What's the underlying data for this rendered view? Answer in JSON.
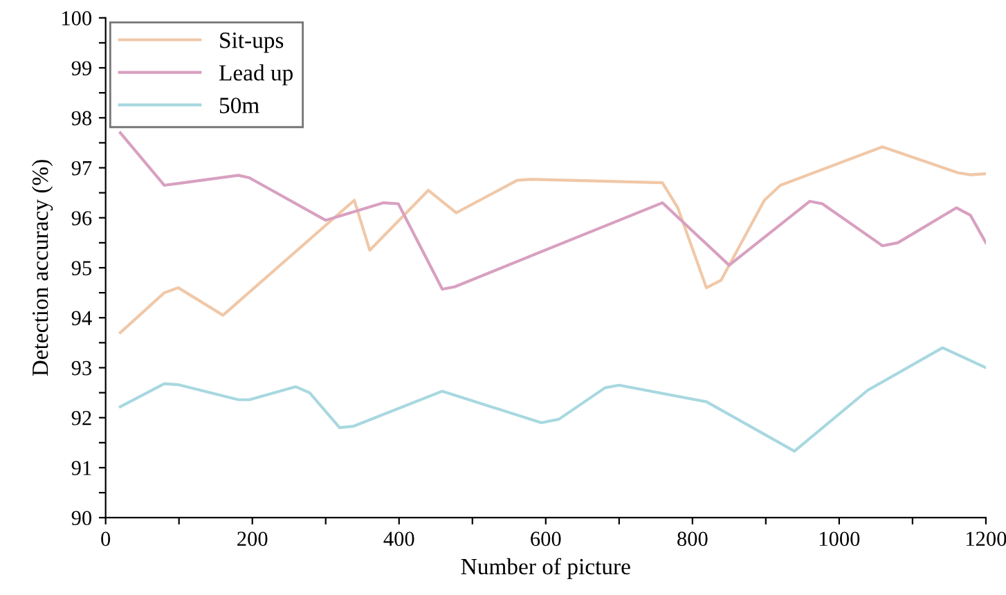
{
  "chart_data": {
    "type": "line",
    "xlabel": "Number of picture",
    "ylabel": "Detection accuracy (%)",
    "xlim": [
      0,
      1200
    ],
    "ylim": [
      90,
      100
    ],
    "xticks": [
      0,
      {
        "value": 100,
        "label": null
      },
      200,
      {
        "value": 300,
        "label": null
      },
      400,
      {
        "value": 500,
        "label": null
      },
      600,
      {
        "value": 700,
        "label": null
      },
      800,
      {
        "value": 900,
        "label": null
      },
      1000,
      {
        "value": 1100,
        "label": null
      },
      1200
    ],
    "yticks": [
      90,
      {
        "value": 90.5,
        "label": null
      },
      91,
      {
        "value": 91.5,
        "label": null
      },
      92,
      {
        "value": 92.5,
        "label": null
      },
      93,
      {
        "value": 93.5,
        "label": null
      },
      94,
      {
        "value": 94.5,
        "label": null
      },
      95,
      {
        "value": 95.5,
        "label": null
      },
      96,
      {
        "value": 96.5,
        "label": null
      },
      97,
      {
        "value": 97.5,
        "label": null
      },
      98,
      {
        "value": 98.5,
        "label": null
      },
      99,
      {
        "value": 99.5,
        "label": null
      },
      100
    ],
    "grid": false,
    "legend": "top left",
    "marker": "none",
    "line_style": "solid",
    "series": [
      {
        "name": "Sit-ups",
        "color": "#f0c8a8",
        "x": [
          20,
          80,
          99,
          160,
          339,
          360,
          440,
          478,
          561,
          580,
          759,
          780,
          819,
          839,
          898,
          920,
          1059,
          1162,
          1179,
          1200
        ],
        "values": [
          93.7,
          94.5,
          94.6,
          94.05,
          96.35,
          95.35,
          96.55,
          96.1,
          96.75,
          96.77,
          96.7,
          96.2,
          94.6,
          94.75,
          96.35,
          96.65,
          97.42,
          96.9,
          96.86,
          96.88
        ]
      },
      {
        "name": "Lead up",
        "color": "#d8a0c0",
        "x": [
          20,
          80,
          181,
          196,
          300,
          379,
          399,
          459,
          476,
          759,
          850,
          960,
          977,
          1059,
          1080,
          1160,
          1179,
          1200
        ],
        "values": [
          97.7,
          96.65,
          96.85,
          96.8,
          95.95,
          96.3,
          96.28,
          94.57,
          94.62,
          96.3,
          95.05,
          96.33,
          96.28,
          95.44,
          95.5,
          96.2,
          96.05,
          95.5
        ]
      },
      {
        "name": "50m",
        "color": "#a8d8e0",
        "x": [
          20,
          80,
          99,
          181,
          196,
          259,
          278,
          319,
          338,
          459,
          476,
          594,
          618,
          681,
          700,
          819,
          939,
          1039,
          1141,
          1200
        ],
        "values": [
          92.22,
          92.68,
          92.66,
          92.36,
          92.36,
          92.62,
          92.5,
          91.8,
          91.83,
          92.53,
          92.45,
          91.9,
          91.97,
          92.6,
          92.65,
          92.32,
          91.33,
          92.55,
          93.4,
          93.0
        ]
      }
    ]
  }
}
